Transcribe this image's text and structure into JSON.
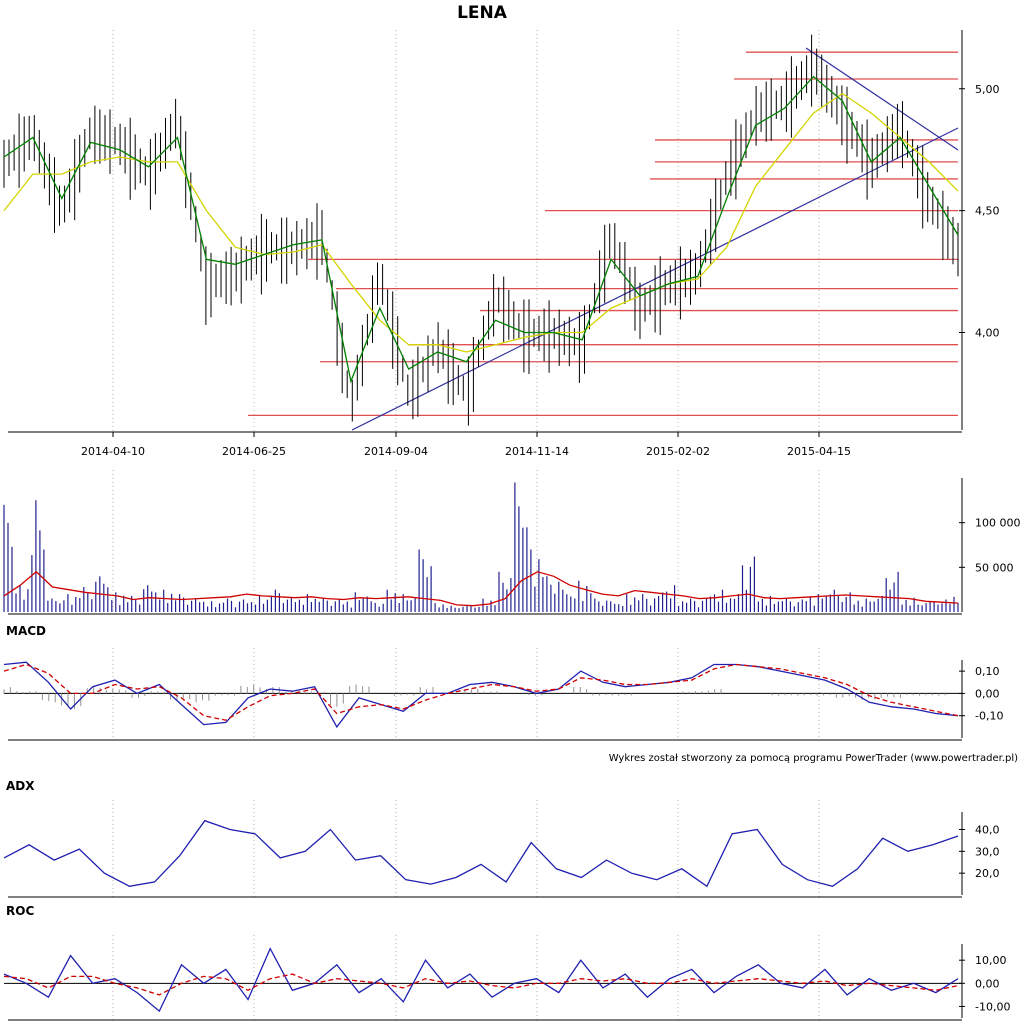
{
  "credit": "Wykres został stworzony za pomocą programu PowerTrader (www.powertrader.pl)",
  "colors": {
    "candle": "#000000",
    "ma_short": "#008000",
    "ma_long": "#d4d400",
    "level_line": "#e05050",
    "trend_line": "#3030a0",
    "volume_bar": "#202090",
    "volume_ma": "#d00000",
    "macd_line": "#2020b0",
    "macd_signal": "#d00000",
    "macd_hist": "#909090",
    "adx_line": "#2020b0",
    "roc_line": "#2020b0",
    "roc_signal": "#d00000"
  },
  "chart_data": [
    {
      "type": "line",
      "title": "LENA",
      "x_ticks": [
        "2014-04-10",
        "2014-06-25",
        "2014-09-04",
        "2014-11-14",
        "2015-02-02",
        "2015-04-15"
      ],
      "y_ticks": [
        "5,00",
        "4,50",
        "4,00"
      ],
      "ylim": [
        3.6,
        5.2
      ],
      "grid": true,
      "x": [
        "2014-02-24",
        "2014-03-10",
        "2014-03-24",
        "2014-04-10",
        "2014-04-24",
        "2014-05-08",
        "2014-05-22",
        "2014-06-05",
        "2014-06-25",
        "2014-07-10",
        "2014-07-24",
        "2014-08-07",
        "2014-08-21",
        "2014-09-04",
        "2014-09-18",
        "2014-10-02",
        "2014-10-16",
        "2014-10-30",
        "2014-11-14",
        "2014-11-28",
        "2014-12-12",
        "2014-12-29",
        "2015-01-14",
        "2015-02-02",
        "2015-02-16",
        "2015-03-02",
        "2015-03-16",
        "2015-03-31",
        "2015-04-15",
        "2015-04-29",
        "2015-05-13",
        "2015-05-27",
        "2015-06-10",
        "2015-06-19"
      ],
      "series": [
        {
          "values": [
            4.7,
            4.82,
            4.5,
            4.83,
            4.78,
            4.65,
            4.88,
            4.2,
            4.25,
            4.35,
            4.35,
            4.4,
            3.7,
            4.25,
            3.75,
            3.95,
            3.75,
            4.15,
            4.0,
            4.0,
            3.95,
            4.4,
            4.1,
            4.2,
            4.25,
            4.65,
            4.9,
            4.95,
            5.1,
            4.9,
            4.7,
            4.85,
            4.55,
            4.35
          ]
        },
        {
          "values": [
            4.72,
            4.8,
            4.55,
            4.78,
            4.75,
            4.68,
            4.8,
            4.3,
            4.28,
            4.32,
            4.36,
            4.38,
            3.8,
            4.1,
            3.85,
            3.92,
            3.88,
            4.05,
            4.0,
            4.0,
            3.97,
            4.3,
            4.15,
            4.2,
            4.23,
            4.55,
            4.85,
            4.92,
            5.05,
            4.95,
            4.7,
            4.8,
            4.6,
            4.4
          ]
        },
        {
          "values": [
            4.5,
            4.65,
            4.65,
            4.7,
            4.72,
            4.7,
            4.7,
            4.5,
            4.35,
            4.32,
            4.33,
            4.36,
            4.2,
            4.05,
            3.95,
            3.95,
            3.92,
            3.95,
            3.98,
            4.0,
            4.0,
            4.1,
            4.15,
            4.2,
            4.22,
            4.35,
            4.6,
            4.75,
            4.9,
            4.98,
            4.9,
            4.8,
            4.7,
            4.58
          ]
        }
      ],
      "horizontal_levels": [
        5.15,
        5.04,
        4.79,
        4.7,
        4.63,
        4.5,
        4.3,
        4.18,
        4.09,
        3.95,
        3.88,
        3.66
      ]
    },
    {
      "type": "bar",
      "y_ticks": [
        "100 000",
        "50 000"
      ],
      "ylim": [
        0,
        150000
      ],
      "values": [
        120000,
        30000,
        125000,
        15000,
        20000,
        28000,
        40000,
        22000,
        18000,
        30000,
        25000,
        20000,
        15000,
        12000,
        15000,
        14000,
        18000,
        25000,
        17000,
        20000,
        15000,
        14000,
        22000,
        12000,
        25000,
        20000,
        70000,
        10000,
        7000,
        8000,
        15000,
        45000,
        145000,
        70000,
        40000,
        25000,
        35000,
        15000,
        12000,
        20000,
        18000,
        30000,
        15000,
        15000,
        25000,
        20000,
        62000,
        18000,
        16000,
        14000,
        20000,
        25000,
        22000,
        15000,
        18000,
        45000,
        16000,
        12000,
        14000,
        20000
      ],
      "ma": [
        18000,
        30000,
        45000,
        28000,
        25000,
        22000,
        20000,
        18000,
        14000,
        16000,
        15000,
        14000,
        15000,
        16000,
        17000,
        20000,
        18000,
        17000,
        16000,
        17000,
        15000,
        14000,
        16000,
        15000,
        16000,
        17000,
        15000,
        13000,
        8000,
        7000,
        9000,
        15000,
        35000,
        45000,
        40000,
        30000,
        25000,
        20000,
        18000,
        24000,
        22000,
        20000,
        18000,
        15000,
        16000,
        18000,
        20000,
        16000,
        15000,
        16000,
        17000,
        18000,
        19000,
        18000,
        17000,
        16000,
        15000,
        12000,
        11000,
        10000
      ]
    },
    {
      "type": "line",
      "title": "MACD",
      "y_ticks": [
        "0,10",
        "0,00",
        "-0,10"
      ],
      "ylim": [
        -0.2,
        0.15
      ],
      "series": [
        {
          "values": [
            0.13,
            0.14,
            0.05,
            -0.07,
            0.03,
            0.06,
            0.0,
            0.04,
            -0.05,
            -0.14,
            -0.13,
            -0.02,
            0.02,
            0.01,
            0.03,
            -0.15,
            -0.02,
            -0.05,
            -0.08,
            0.0,
            0.0,
            0.04,
            0.05,
            0.03,
            0.0,
            0.02,
            0.1,
            0.05,
            0.03,
            0.04,
            0.05,
            0.07,
            0.13,
            0.13,
            0.12,
            0.1,
            0.08,
            0.06,
            0.02,
            -0.04,
            -0.06,
            -0.07,
            -0.09,
            -0.1
          ]
        },
        {
          "values": [
            0.1,
            0.13,
            0.09,
            0.0,
            0.0,
            0.04,
            0.02,
            0.03,
            -0.02,
            -0.1,
            -0.12,
            -0.06,
            -0.01,
            0.0,
            0.02,
            -0.09,
            -0.06,
            -0.05,
            -0.07,
            -0.03,
            0.0,
            0.02,
            0.04,
            0.03,
            0.01,
            0.02,
            0.07,
            0.06,
            0.04,
            0.04,
            0.05,
            0.06,
            0.11,
            0.13,
            0.12,
            0.11,
            0.09,
            0.07,
            0.04,
            -0.01,
            -0.04,
            -0.06,
            -0.08,
            -0.1
          ]
        },
        {
          "values": [
            0.03,
            0.01,
            -0.04,
            -0.07,
            0.03,
            0.02,
            -0.02,
            0.01,
            -0.03,
            -0.04,
            -0.01,
            0.04,
            0.03,
            0.01,
            0.01,
            -0.06,
            0.04,
            0.0,
            -0.01,
            0.03,
            0.0,
            0.02,
            0.01,
            0.0,
            -0.01,
            0.0,
            0.03,
            -0.01,
            -0.01,
            0.0,
            0.0,
            0.01,
            0.02,
            0.0,
            0.0,
            -0.01,
            -0.01,
            -0.01,
            -0.02,
            -0.03,
            -0.02,
            -0.01,
            -0.01,
            0.0
          ]
        }
      ]
    },
    {
      "type": "line",
      "title": "ADX",
      "y_ticks": [
        "40,0",
        "30,0",
        "20,0"
      ],
      "ylim": [
        10,
        48
      ],
      "series": [
        {
          "values": [
            27,
            33,
            26,
            31,
            20,
            14,
            16,
            28,
            44,
            40,
            38,
            27,
            30,
            40,
            26,
            28,
            17,
            15,
            18,
            24,
            16,
            34,
            22,
            18,
            26,
            20,
            17,
            22,
            14,
            38,
            40,
            24,
            17,
            14,
            22,
            36,
            30,
            33,
            37
          ]
        }
      ]
    },
    {
      "type": "line",
      "title": "ROC",
      "y_ticks": [
        "10,00",
        "0,00",
        "-10,00"
      ],
      "ylim": [
        -15,
        17
      ],
      "series": [
        {
          "values": [
            4,
            0,
            -6,
            12,
            0,
            2,
            -4,
            -12,
            8,
            0,
            6,
            -7,
            15,
            -3,
            0,
            8,
            -4,
            2,
            -8,
            10,
            -2,
            4,
            -6,
            0,
            2,
            -4,
            10,
            -2,
            4,
            -6,
            2,
            6,
            -4,
            3,
            8,
            0,
            -2,
            6,
            -5,
            2,
            -3,
            0,
            -4,
            2
          ]
        },
        {
          "values": [
            3,
            2,
            -2,
            3,
            3,
            0,
            -2,
            -5,
            0,
            3,
            2,
            -3,
            2,
            4,
            0,
            2,
            1,
            0,
            -2,
            2,
            0,
            1,
            -1,
            -2,
            0,
            0,
            2,
            1,
            2,
            0,
            0,
            2,
            0,
            1,
            2,
            1,
            0,
            1,
            -1,
            0,
            -1,
            -2,
            -3,
            -1
          ]
        }
      ]
    }
  ]
}
